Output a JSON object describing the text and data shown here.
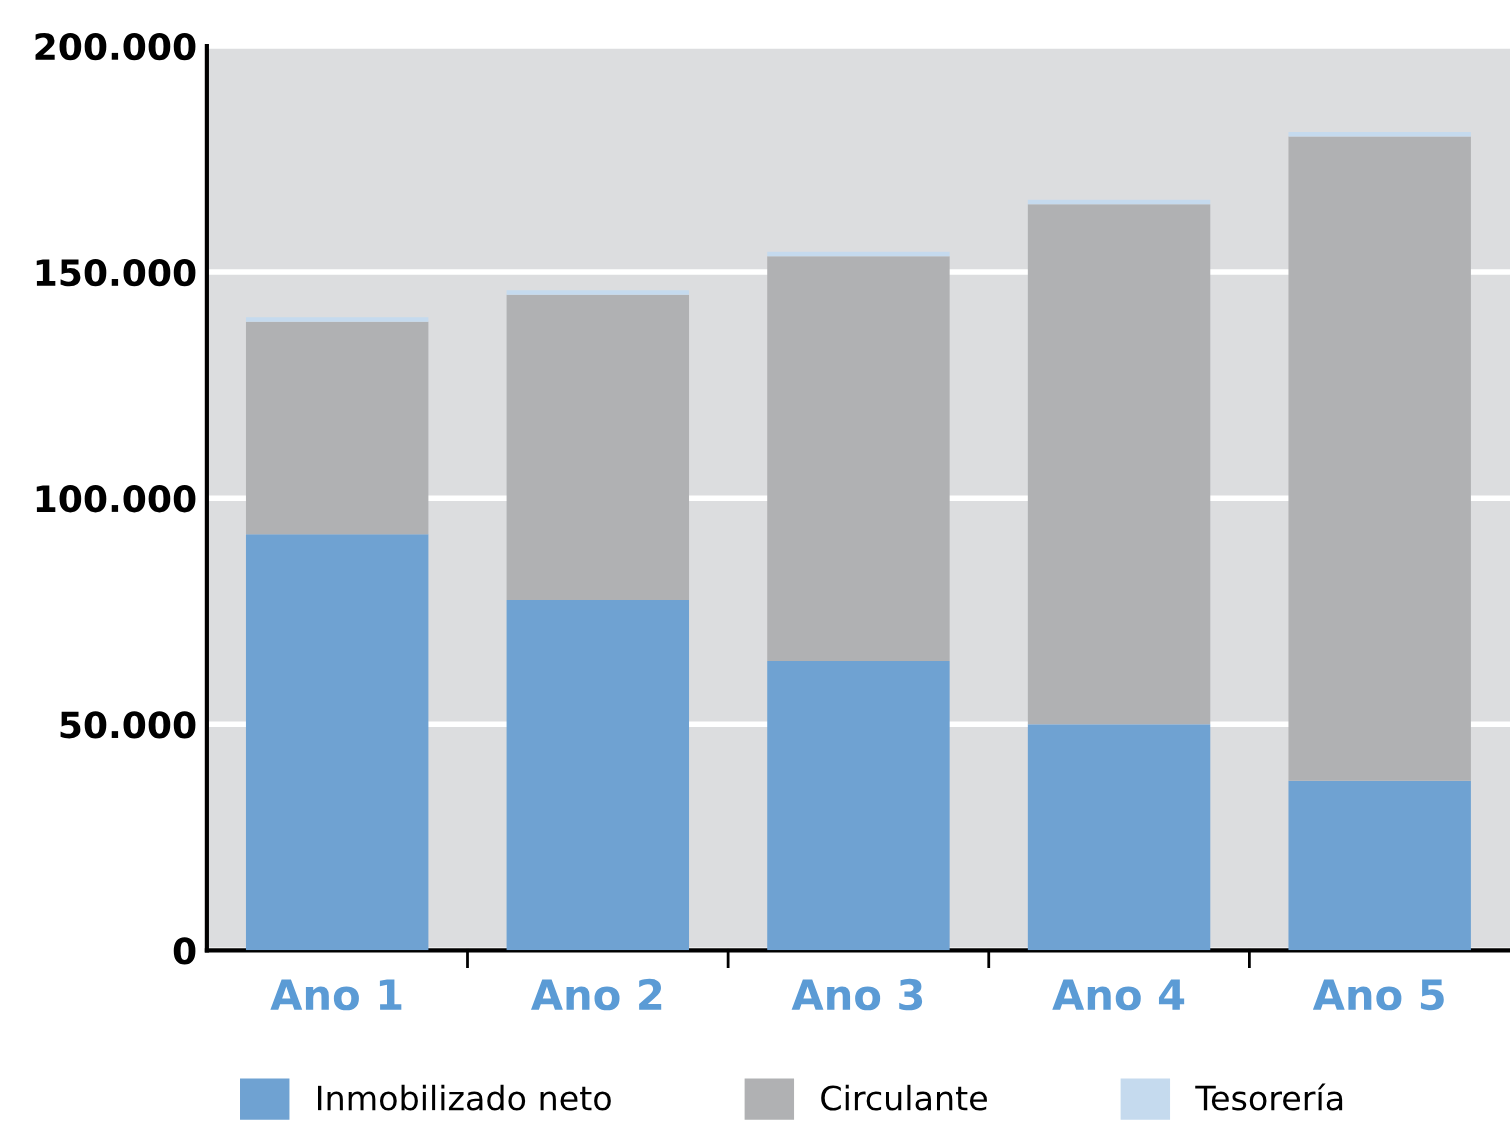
{
  "chart_data": {
    "type": "bar",
    "stacked": true,
    "categories": [
      "Ano 1",
      "Ano 2",
      "Ano 3",
      "Ano 4",
      "Ano 5"
    ],
    "series": [
      {
        "name": "Inmobilizado neto",
        "color": "#6fa2d2",
        "values": [
          92000,
          77500,
          64000,
          50000,
          37500
        ]
      },
      {
        "name": "Circulante",
        "color": "#b0b1b3",
        "values": [
          47000,
          67500,
          89500,
          115000,
          142500
        ]
      },
      {
        "name": "Tesorería",
        "color": "#c5daee",
        "values": [
          1000,
          1000,
          1000,
          1000,
          1000
        ]
      }
    ],
    "ylim": [
      0,
      200000
    ],
    "yticks": [
      {
        "value": 0,
        "label": "0"
      },
      {
        "value": 50000,
        "label": "50.000"
      },
      {
        "value": 100000,
        "label": "100.000"
      },
      {
        "value": 150000,
        "label": "150.000"
      },
      {
        "value": 200000,
        "label": "200.000"
      }
    ],
    "grid": "y",
    "legend": "bottom"
  }
}
